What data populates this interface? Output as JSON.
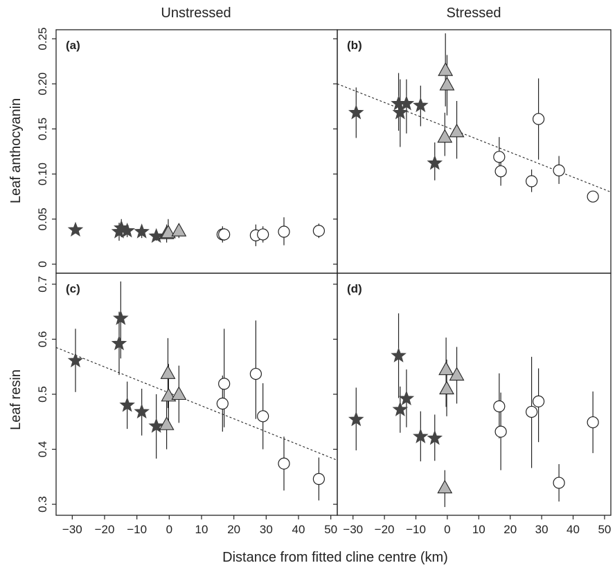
{
  "figure": {
    "col_titles": [
      "Unstressed",
      "Stressed"
    ],
    "xlabel": "Distance from fitted cline centre (km)",
    "ylabel_top": "Leaf anthocyanin",
    "ylabel_bottom": "Leaf resin"
  },
  "colors": {
    "star_fill": "#444444",
    "triangle_fill": "#b5b5b5",
    "circle_fill": "#ffffff",
    "stroke": "#222222"
  },
  "chart_data": [
    {
      "type": "scatter",
      "panel_label": "(a)",
      "column": "Unstressed",
      "ylabel": "Leaf anthocyanin",
      "xlim": [
        -35,
        52
      ],
      "ylim": [
        -0.01,
        0.26
      ],
      "x_ticks": [
        -30,
        -20,
        -10,
        0,
        10,
        20,
        30,
        40,
        50
      ],
      "y_ticks": [
        0,
        0.05,
        0.1,
        0.15,
        0.2,
        0.25
      ],
      "y_tick_labels": [
        "0",
        "0.05",
        "0.10",
        "0.15",
        "0.20",
        "0.25"
      ],
      "grid": false,
      "trend_line": null,
      "points": [
        {
          "shape": "star",
          "x": -29,
          "y": 0.038,
          "lo": 0.034,
          "hi": 0.042
        },
        {
          "shape": "star",
          "x": -15.5,
          "y": 0.036,
          "lo": 0.026,
          "hi": 0.046
        },
        {
          "shape": "star",
          "x": -14.8,
          "y": 0.04,
          "lo": 0.03,
          "hi": 0.05
        },
        {
          "shape": "star",
          "x": -13,
          "y": 0.037,
          "lo": 0.03,
          "hi": 0.044
        },
        {
          "shape": "star",
          "x": -8.5,
          "y": 0.036,
          "lo": 0.029,
          "hi": 0.043
        },
        {
          "shape": "star",
          "x": -4,
          "y": 0.031,
          "lo": 0.026,
          "hi": 0.036
        },
        {
          "shape": "triangle",
          "x": -0.8,
          "y": 0.034,
          "lo": 0.024,
          "hi": 0.044
        },
        {
          "shape": "triangle",
          "x": -0.3,
          "y": 0.035,
          "lo": 0.028,
          "hi": 0.05
        },
        {
          "shape": "triangle",
          "x": 3,
          "y": 0.037,
          "lo": 0.029,
          "hi": 0.045
        },
        {
          "shape": "circle",
          "x": 16.5,
          "y": 0.033,
          "lo": 0.024,
          "hi": 0.042
        },
        {
          "shape": "circle",
          "x": 17,
          "y": 0.033,
          "lo": 0.026,
          "hi": 0.04
        },
        {
          "shape": "circle",
          "x": 26.8,
          "y": 0.032,
          "lo": 0.02,
          "hi": 0.044
        },
        {
          "shape": "circle",
          "x": 29,
          "y": 0.033,
          "lo": 0.024,
          "hi": 0.042
        },
        {
          "shape": "circle",
          "x": 35.5,
          "y": 0.036,
          "lo": 0.021,
          "hi": 0.052
        },
        {
          "shape": "circle",
          "x": 46.3,
          "y": 0.037,
          "lo": 0.029,
          "hi": 0.045
        }
      ]
    },
    {
      "type": "scatter",
      "panel_label": "(b)",
      "column": "Stressed",
      "ylabel": "Leaf anthocyanin",
      "xlim": [
        -35,
        52
      ],
      "ylim": [
        -0.01,
        0.26
      ],
      "x_ticks": [
        -30,
        -20,
        -10,
        0,
        10,
        20,
        30,
        40,
        50
      ],
      "y_ticks": [
        0,
        0.05,
        0.1,
        0.15,
        0.2,
        0.25
      ],
      "grid": false,
      "trend_line": [
        [
          -35,
          0.2
        ],
        [
          52,
          0.08
        ]
      ],
      "points": [
        {
          "shape": "star",
          "x": -29,
          "y": 0.168,
          "lo": 0.14,
          "hi": 0.196
        },
        {
          "shape": "star",
          "x": -15.5,
          "y": 0.178,
          "lo": 0.148,
          "hi": 0.212
        },
        {
          "shape": "star",
          "x": -15,
          "y": 0.168,
          "lo": 0.13,
          "hi": 0.205
        },
        {
          "shape": "star",
          "x": -13,
          "y": 0.178,
          "lo": 0.145,
          "hi": 0.205
        },
        {
          "shape": "star",
          "x": -8.5,
          "y": 0.176,
          "lo": 0.153,
          "hi": 0.198
        },
        {
          "shape": "star",
          "x": -4,
          "y": 0.112,
          "lo": 0.093,
          "hi": 0.135
        },
        {
          "shape": "triangle",
          "x": -0.8,
          "y": 0.141,
          "lo": 0.12,
          "hi": 0.168
        },
        {
          "shape": "triangle",
          "x": -0.6,
          "y": 0.215,
          "lo": 0.175,
          "hi": 0.256
        },
        {
          "shape": "triangle",
          "x": -0.1,
          "y": 0.199,
          "lo": 0.165,
          "hi": 0.232
        },
        {
          "shape": "triangle",
          "x": 3,
          "y": 0.147,
          "lo": 0.117,
          "hi": 0.181
        },
        {
          "shape": "circle",
          "x": 16.5,
          "y": 0.119,
          "lo": 0.098,
          "hi": 0.141
        },
        {
          "shape": "circle",
          "x": 17,
          "y": 0.103,
          "lo": 0.087,
          "hi": 0.12
        },
        {
          "shape": "circle",
          "x": 26.8,
          "y": 0.092,
          "lo": 0.08,
          "hi": 0.105
        },
        {
          "shape": "circle",
          "x": 29,
          "y": 0.161,
          "lo": 0.116,
          "hi": 0.206
        },
        {
          "shape": "circle",
          "x": 35.5,
          "y": 0.104,
          "lo": 0.089,
          "hi": 0.12
        },
        {
          "shape": "circle",
          "x": 46.3,
          "y": 0.075,
          "lo": 0.07,
          "hi": 0.08
        }
      ]
    },
    {
      "type": "scatter",
      "panel_label": "(c)",
      "column": "Unstressed",
      "ylabel": "Leaf resin",
      "xlim": [
        -35,
        52
      ],
      "ylim": [
        0.28,
        0.72
      ],
      "x_ticks": [
        -30,
        -20,
        -10,
        0,
        10,
        20,
        30,
        40,
        50
      ],
      "x_tick_labels": [
        "−30",
        "−20",
        "−10",
        "0",
        "10",
        "20",
        "30",
        "40",
        "50"
      ],
      "y_ticks": [
        0.3,
        0.4,
        0.5,
        0.6,
        0.7
      ],
      "y_tick_labels": [
        "0.3",
        "0.4",
        "0.5",
        "0.6",
        "0.7"
      ],
      "grid": false,
      "trend_line": [
        [
          -35,
          0.585
        ],
        [
          52,
          0.38
        ]
      ],
      "points": [
        {
          "shape": "star",
          "x": -29,
          "y": 0.561,
          "lo": 0.504,
          "hi": 0.619
        },
        {
          "shape": "star",
          "x": -15.5,
          "y": 0.592,
          "lo": 0.535,
          "hi": 0.65
        },
        {
          "shape": "star",
          "x": -15,
          "y": 0.638,
          "lo": 0.565,
          "hi": 0.705
        },
        {
          "shape": "star",
          "x": -13,
          "y": 0.48,
          "lo": 0.437,
          "hi": 0.523
        },
        {
          "shape": "star",
          "x": -8.5,
          "y": 0.468,
          "lo": 0.425,
          "hi": 0.51
        },
        {
          "shape": "star",
          "x": -4,
          "y": 0.442,
          "lo": 0.383,
          "hi": 0.5
        },
        {
          "shape": "triangle",
          "x": -0.8,
          "y": 0.445,
          "lo": 0.4,
          "hi": 0.49
        },
        {
          "shape": "triangle",
          "x": -0.4,
          "y": 0.538,
          "lo": 0.475,
          "hi": 0.602
        },
        {
          "shape": "triangle",
          "x": -0.2,
          "y": 0.497,
          "lo": 0.44,
          "hi": 0.555
        },
        {
          "shape": "triangle",
          "x": 3,
          "y": 0.5,
          "lo": 0.448,
          "hi": 0.552
        },
        {
          "shape": "circle",
          "x": 16.5,
          "y": 0.483,
          "lo": 0.432,
          "hi": 0.534
        },
        {
          "shape": "circle",
          "x": 17,
          "y": 0.519,
          "lo": 0.44,
          "hi": 0.619
        },
        {
          "shape": "circle",
          "x": 26.8,
          "y": 0.537,
          "lo": 0.455,
          "hi": 0.634
        },
        {
          "shape": "circle",
          "x": 29,
          "y": 0.46,
          "lo": 0.4,
          "hi": 0.52
        },
        {
          "shape": "circle",
          "x": 35.5,
          "y": 0.374,
          "lo": 0.325,
          "hi": 0.423
        },
        {
          "shape": "circle",
          "x": 46.3,
          "y": 0.346,
          "lo": 0.307,
          "hi": 0.385
        }
      ]
    },
    {
      "type": "scatter",
      "panel_label": "(d)",
      "column": "Stressed",
      "ylabel": "Leaf resin",
      "xlim": [
        -35,
        52
      ],
      "ylim": [
        0.28,
        0.72
      ],
      "x_ticks": [
        -30,
        -20,
        -10,
        0,
        10,
        20,
        30,
        40,
        50
      ],
      "x_tick_labels": [
        "−30",
        "−20",
        "−10",
        "0",
        "10",
        "20",
        "30",
        "40",
        "50"
      ],
      "y_ticks": [
        0.3,
        0.4,
        0.5,
        0.6,
        0.7
      ],
      "grid": false,
      "trend_line": null,
      "points": [
        {
          "shape": "star",
          "x": -29,
          "y": 0.454,
          "lo": 0.398,
          "hi": 0.512
        },
        {
          "shape": "star",
          "x": -15.5,
          "y": 0.57,
          "lo": 0.493,
          "hi": 0.647
        },
        {
          "shape": "star",
          "x": -15,
          "y": 0.472,
          "lo": 0.43,
          "hi": 0.514
        },
        {
          "shape": "star",
          "x": -13,
          "y": 0.492,
          "lo": 0.44,
          "hi": 0.545
        },
        {
          "shape": "star",
          "x": -8.5,
          "y": 0.423,
          "lo": 0.378,
          "hi": 0.469
        },
        {
          "shape": "star",
          "x": -4,
          "y": 0.42,
          "lo": 0.379,
          "hi": 0.463
        },
        {
          "shape": "triangle",
          "x": -0.8,
          "y": 0.33,
          "lo": 0.295,
          "hi": 0.362
        },
        {
          "shape": "triangle",
          "x": -0.4,
          "y": 0.545,
          "lo": 0.477,
          "hi": 0.603
        },
        {
          "shape": "triangle",
          "x": -0.2,
          "y": 0.51,
          "lo": 0.46,
          "hi": 0.563
        },
        {
          "shape": "triangle",
          "x": 3,
          "y": 0.535,
          "lo": 0.483,
          "hi": 0.586
        },
        {
          "shape": "circle",
          "x": 16.5,
          "y": 0.478,
          "lo": 0.42,
          "hi": 0.538
        },
        {
          "shape": "circle",
          "x": 17,
          "y": 0.432,
          "lo": 0.362,
          "hi": 0.503
        },
        {
          "shape": "circle",
          "x": 26.8,
          "y": 0.468,
          "lo": 0.366,
          "hi": 0.568
        },
        {
          "shape": "circle",
          "x": 29,
          "y": 0.487,
          "lo": 0.413,
          "hi": 0.547
        },
        {
          "shape": "circle",
          "x": 35.5,
          "y": 0.339,
          "lo": 0.305,
          "hi": 0.373
        },
        {
          "shape": "circle",
          "x": 46.3,
          "y": 0.449,
          "lo": 0.393,
          "hi": 0.505
        }
      ]
    }
  ]
}
